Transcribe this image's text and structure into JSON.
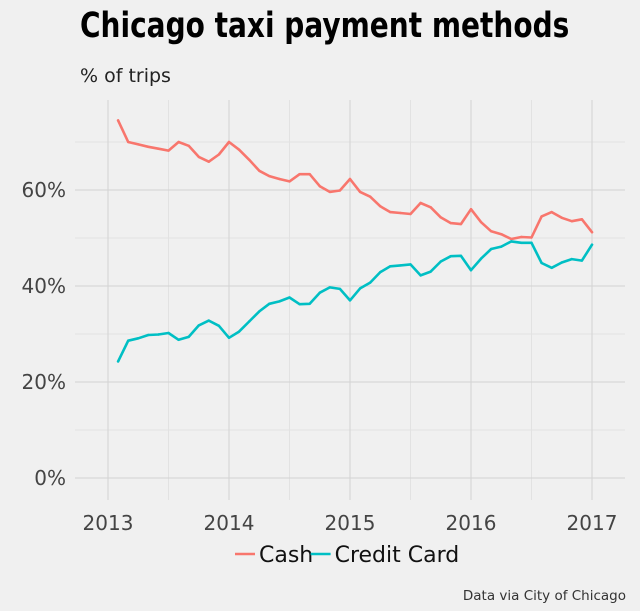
{
  "chart_data": {
    "type": "line",
    "title": "Chicago taxi payment methods",
    "subtitle": "% of trips",
    "caption": "Data via City of Chicago",
    "xlabel": "",
    "ylabel": "",
    "x_ticks": [
      "2013",
      "2014",
      "2015",
      "2016",
      "2017"
    ],
    "y_ticks": [
      "0%",
      "20%",
      "40%",
      "60%"
    ],
    "ylim": [
      0,
      75
    ],
    "xlim": [
      "2013-01",
      "2017-01"
    ],
    "grid": true,
    "legend_position": "bottom",
    "x": [
      "2013-02",
      "2013-03",
      "2013-04",
      "2013-05",
      "2013-06",
      "2013-07",
      "2013-08",
      "2013-09",
      "2013-10",
      "2013-11",
      "2013-12",
      "2014-01",
      "2014-02",
      "2014-03",
      "2014-04",
      "2014-05",
      "2014-06",
      "2014-07",
      "2014-08",
      "2014-09",
      "2014-10",
      "2014-11",
      "2014-12",
      "2015-01",
      "2015-02",
      "2015-03",
      "2015-04",
      "2015-05",
      "2015-06",
      "2015-07",
      "2015-08",
      "2015-09",
      "2015-10",
      "2015-11",
      "2015-12",
      "2016-01",
      "2016-02",
      "2016-03",
      "2016-04",
      "2016-05",
      "2016-06",
      "2016-07",
      "2016-08",
      "2016-09",
      "2016-10",
      "2016-11",
      "2016-12",
      "2017-01"
    ],
    "series": [
      {
        "name": "Cash",
        "color": "#F8766D",
        "values": [
          74.5,
          70.0,
          69.5,
          69.0,
          68.6,
          68.2,
          70.0,
          69.2,
          66.9,
          65.9,
          67.4,
          70.0,
          68.4,
          66.3,
          64.0,
          62.9,
          62.3,
          61.8,
          63.3,
          63.3,
          60.8,
          59.6,
          59.9,
          62.3,
          59.6,
          58.6,
          56.6,
          55.4,
          55.2,
          55.0,
          57.3,
          56.4,
          54.3,
          53.1,
          52.9,
          56.0,
          53.3,
          51.4,
          50.8,
          49.8,
          50.2,
          50.1,
          54.5,
          55.4,
          54.2,
          53.5,
          53.9,
          51.2
        ]
      },
      {
        "name": "Credit Card",
        "color": "#00BFC4",
        "values": [
          24.3,
          28.6,
          29.1,
          29.8,
          29.9,
          30.2,
          28.8,
          29.4,
          31.8,
          32.8,
          31.7,
          29.2,
          30.5,
          32.6,
          34.7,
          36.3,
          36.8,
          37.6,
          36.2,
          36.3,
          38.6,
          39.7,
          39.4,
          37.0,
          39.5,
          40.7,
          42.9,
          44.1,
          44.3,
          44.5,
          42.2,
          43.0,
          45.1,
          46.2,
          46.3,
          43.3,
          45.7,
          47.7,
          48.2,
          49.3,
          49.0,
          49.0,
          44.8,
          43.8,
          44.9,
          45.6,
          45.3,
          48.6
        ]
      }
    ]
  }
}
